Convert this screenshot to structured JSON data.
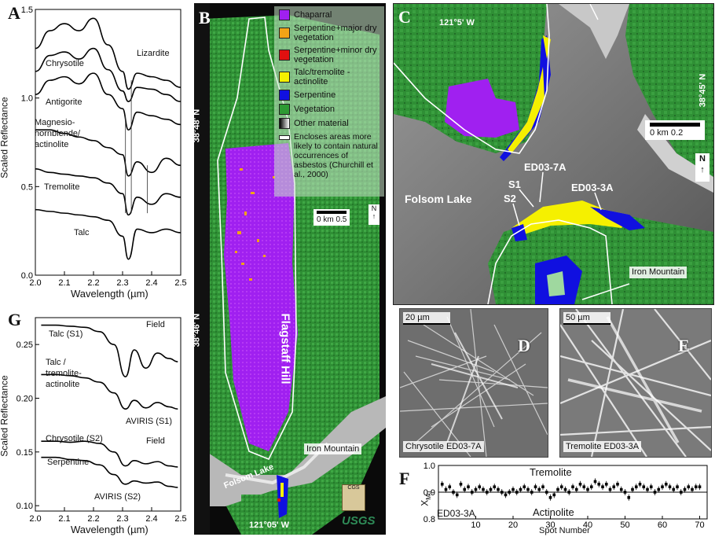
{
  "panels": {
    "A": {
      "letter": "A",
      "ylabel": "Scaled Reflectance",
      "xlabel": "Wavelength (µm)",
      "xticks": [
        "2.0",
        "2.1",
        "2.2",
        "2.3",
        "2.4",
        "2.5"
      ],
      "yticks": [
        "0.0",
        "0.5",
        "1.0",
        "1.5"
      ],
      "labels": [
        "Chrysotile",
        "Lizardite",
        "Antigorite",
        "Magnesio-",
        "hornblende/",
        "actinolite",
        "Tremolite",
        "Talc"
      ]
    },
    "B": {
      "letter": "B",
      "legend": [
        {
          "label": "Chaparral",
          "color": "#a020f0"
        },
        {
          "label": "Serpentine+major dry vegetation",
          "color": "#f2a316"
        },
        {
          "label": "Serpentine+minor dry vegetation",
          "color": "#e01010"
        },
        {
          "label": "Talc/tremolite -actinolite",
          "color": "#f5f000"
        },
        {
          "label": "Serpentine",
          "color": "#1010e0"
        },
        {
          "label": "Vegetation",
          "color": "#2e9a33"
        },
        {
          "label": "Other material",
          "color": "#888888"
        },
        {
          "label": "Encloses areas more likely to contain natural occurrences of asbestos (Churchill et al., 2000)",
          "color": "#ffffff"
        }
      ],
      "lat1": "38°48' N",
      "lat2": "38°46' N",
      "lon": "121°05' W",
      "scale": "0   km 0.5",
      "north": "N",
      "place_hill": "Flagstaff Hill",
      "place_lake": "Folsom Lake",
      "place_mtn": "Iron Mountain",
      "usgs": "USGS",
      "cgs": "CGS"
    },
    "C": {
      "letter": "C",
      "lon": "121°5' W",
      "lat": "38°45' N",
      "scale": "0     km     0.2",
      "north": "N",
      "lake": "Folsom Lake",
      "mtn": "Iron Mountain",
      "s1": "S1",
      "s2": "S2",
      "ed7": "ED03-7A",
      "ed3": "ED03-3A"
    },
    "D": {
      "letter": "D",
      "scale": "20 µm",
      "caption": "Chrysotile ED03-7A"
    },
    "E": {
      "letter": "E",
      "scale": "50 µm",
      "caption": "Tremolite ED03-3A"
    },
    "F": {
      "letter": "F",
      "ylabel": "X",
      "ylabel_sub": "Mg",
      "xlabel": "Spot Number",
      "top_label": "Tremolite",
      "bottom_left": "ED03-3A",
      "bottom_mid": "Actinolite",
      "xticks": [
        "10",
        "20",
        "30",
        "40",
        "50",
        "60",
        "70"
      ],
      "yticks": [
        "0.8",
        "0.9",
        "1.0"
      ]
    },
    "G": {
      "letter": "G",
      "ylabel": "Scaled Reflectance",
      "xlabel": "Wavelength (µm)",
      "xticks": [
        "2.0",
        "2.1",
        "2.2",
        "2.3",
        "2.4",
        "2.5"
      ],
      "yticks": [
        "0.10",
        "0.15",
        "0.20",
        "0.25"
      ],
      "labels": [
        "Talc (S1)",
        "Field",
        "Talc /",
        "tremolite-",
        "actinolite",
        "AVIRIS (S1)",
        "Chrysotile (S2)",
        "Field",
        "Serpentine",
        "AVIRIS (S2)"
      ]
    }
  },
  "chart_data": [
    {
      "type": "line",
      "panel": "A",
      "xlabel": "Wavelength (µm)",
      "ylabel": "Scaled Reflectance",
      "xlim": [
        2.0,
        2.5
      ],
      "ylim": [
        0.0,
        1.5
      ],
      "x": [
        2.0,
        2.05,
        2.1,
        2.15,
        2.2,
        2.25,
        2.3,
        2.32,
        2.35,
        2.4,
        2.45,
        2.5
      ],
      "series": [
        {
          "name": "Chrysotile",
          "values": [
            1.28,
            1.38,
            1.42,
            1.38,
            1.45,
            1.3,
            1.15,
            1.05,
            1.14,
            1.12,
            1.1,
            1.06
          ]
        },
        {
          "name": "Lizardite",
          "values": [
            1.15,
            1.24,
            1.26,
            1.22,
            1.28,
            1.16,
            1.04,
            0.98,
            1.06,
            1.05,
            1.02,
            0.98
          ]
        },
        {
          "name": "Antigorite",
          "values": [
            1.02,
            1.1,
            1.12,
            1.08,
            1.14,
            1.02,
            0.94,
            0.82,
            0.92,
            0.9,
            0.88,
            0.85
          ]
        },
        {
          "name": "Magnesio-hornblende/actinolite",
          "values": [
            0.82,
            0.82,
            0.8,
            0.78,
            0.76,
            0.72,
            0.68,
            0.56,
            0.64,
            0.58,
            0.66,
            0.62
          ]
        },
        {
          "name": "Tremolite",
          "values": [
            0.6,
            0.58,
            0.57,
            0.56,
            0.55,
            0.52,
            0.46,
            0.34,
            0.44,
            0.4,
            0.46,
            0.44
          ]
        },
        {
          "name": "Talc",
          "values": [
            0.37,
            0.36,
            0.35,
            0.34,
            0.33,
            0.31,
            0.22,
            0.09,
            0.26,
            0.24,
            0.26,
            0.24
          ]
        }
      ]
    },
    {
      "type": "line",
      "panel": "G",
      "xlabel": "Wavelength (µm)",
      "ylabel": "Scaled Reflectance",
      "xlim": [
        2.0,
        2.5
      ],
      "ylim": [
        0.095,
        0.275
      ],
      "x": [
        2.02,
        2.07,
        2.12,
        2.17,
        2.22,
        2.27,
        2.31,
        2.34,
        2.38,
        2.42,
        2.46,
        2.49
      ],
      "series": [
        {
          "name": "Talc (S1) Field",
          "values": [
            0.268,
            0.268,
            0.267,
            0.266,
            0.262,
            0.25,
            0.22,
            0.245,
            0.228,
            0.242,
            0.237,
            0.234
          ]
        },
        {
          "name": "Talc/tremolite-actinolite AVIRIS (S1)",
          "values": [
            0.222,
            0.222,
            0.221,
            0.219,
            0.215,
            0.205,
            0.19,
            0.198,
            0.191,
            0.196,
            0.192,
            0.19
          ]
        },
        {
          "name": "Chrysotile (S2) Field",
          "values": [
            0.16,
            0.16,
            0.159,
            0.16,
            0.158,
            0.15,
            0.137,
            0.142,
            0.139,
            0.141,
            0.137,
            0.136
          ]
        },
        {
          "name": "Serpentine AVIRIS (S2)",
          "values": [
            0.145,
            0.145,
            0.143,
            0.142,
            0.138,
            0.129,
            0.12,
            0.123,
            0.121,
            0.122,
            0.118,
            0.117
          ]
        }
      ]
    },
    {
      "type": "scatter",
      "panel": "F",
      "xlabel": "Spot Number",
      "ylabel": "XMg",
      "xlim": [
        0,
        72
      ],
      "ylim": [
        0.8,
        1.0
      ],
      "x": [
        1,
        2,
        3,
        4,
        5,
        6,
        7,
        8,
        9,
        10,
        11,
        12,
        13,
        14,
        15,
        16,
        17,
        18,
        19,
        20,
        21,
        22,
        23,
        24,
        25,
        26,
        27,
        28,
        29,
        30,
        31,
        32,
        33,
        34,
        35,
        36,
        37,
        38,
        39,
        40,
        41,
        42,
        43,
        44,
        45,
        46,
        47,
        48,
        49,
        50,
        51,
        52,
        53,
        54,
        55,
        56,
        57,
        58,
        59,
        60,
        61,
        62,
        63,
        64,
        65,
        66,
        67,
        68,
        69,
        70
      ],
      "values": [
        0.93,
        0.91,
        0.92,
        0.9,
        0.89,
        0.93,
        0.91,
        0.92,
        0.9,
        0.91,
        0.92,
        0.91,
        0.9,
        0.91,
        0.92,
        0.91,
        0.9,
        0.89,
        0.9,
        0.91,
        0.9,
        0.91,
        0.92,
        0.91,
        0.9,
        0.92,
        0.91,
        0.92,
        0.9,
        0.88,
        0.89,
        0.91,
        0.92,
        0.91,
        0.9,
        0.92,
        0.91,
        0.93,
        0.92,
        0.91,
        0.92,
        0.94,
        0.93,
        0.92,
        0.93,
        0.91,
        0.92,
        0.93,
        0.91,
        0.9,
        0.88,
        0.91,
        0.92,
        0.93,
        0.92,
        0.91,
        0.92,
        0.9,
        0.91,
        0.92,
        0.93,
        0.92,
        0.91,
        0.92,
        0.9,
        0.91,
        0.92,
        0.91,
        0.92,
        0.92
      ]
    }
  ]
}
